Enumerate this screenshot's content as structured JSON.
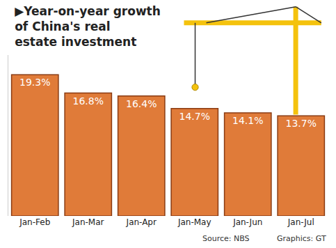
{
  "chart_data": {
    "type": "bar",
    "title": "▶Year-on-year growth of China's real estate investment",
    "categories": [
      "Jan-Feb",
      "Jan-Mar",
      "Jan-Apr",
      "Jan-May",
      "Jan-Jun",
      "Jan-Jul"
    ],
    "values": [
      19.3,
      16.8,
      16.4,
      14.7,
      14.1,
      13.7
    ],
    "value_labels": [
      "19.3%",
      "16.8%",
      "16.4%",
      "14.7%",
      "14.1%",
      "13.7%"
    ],
    "color": "#e07b39",
    "ylim": [
      0,
      22
    ],
    "grid": false,
    "data_labels": true,
    "tick_labels": "x",
    "annotations": [
      "Source: NBS",
      "Graphics: GT"
    ]
  }
}
